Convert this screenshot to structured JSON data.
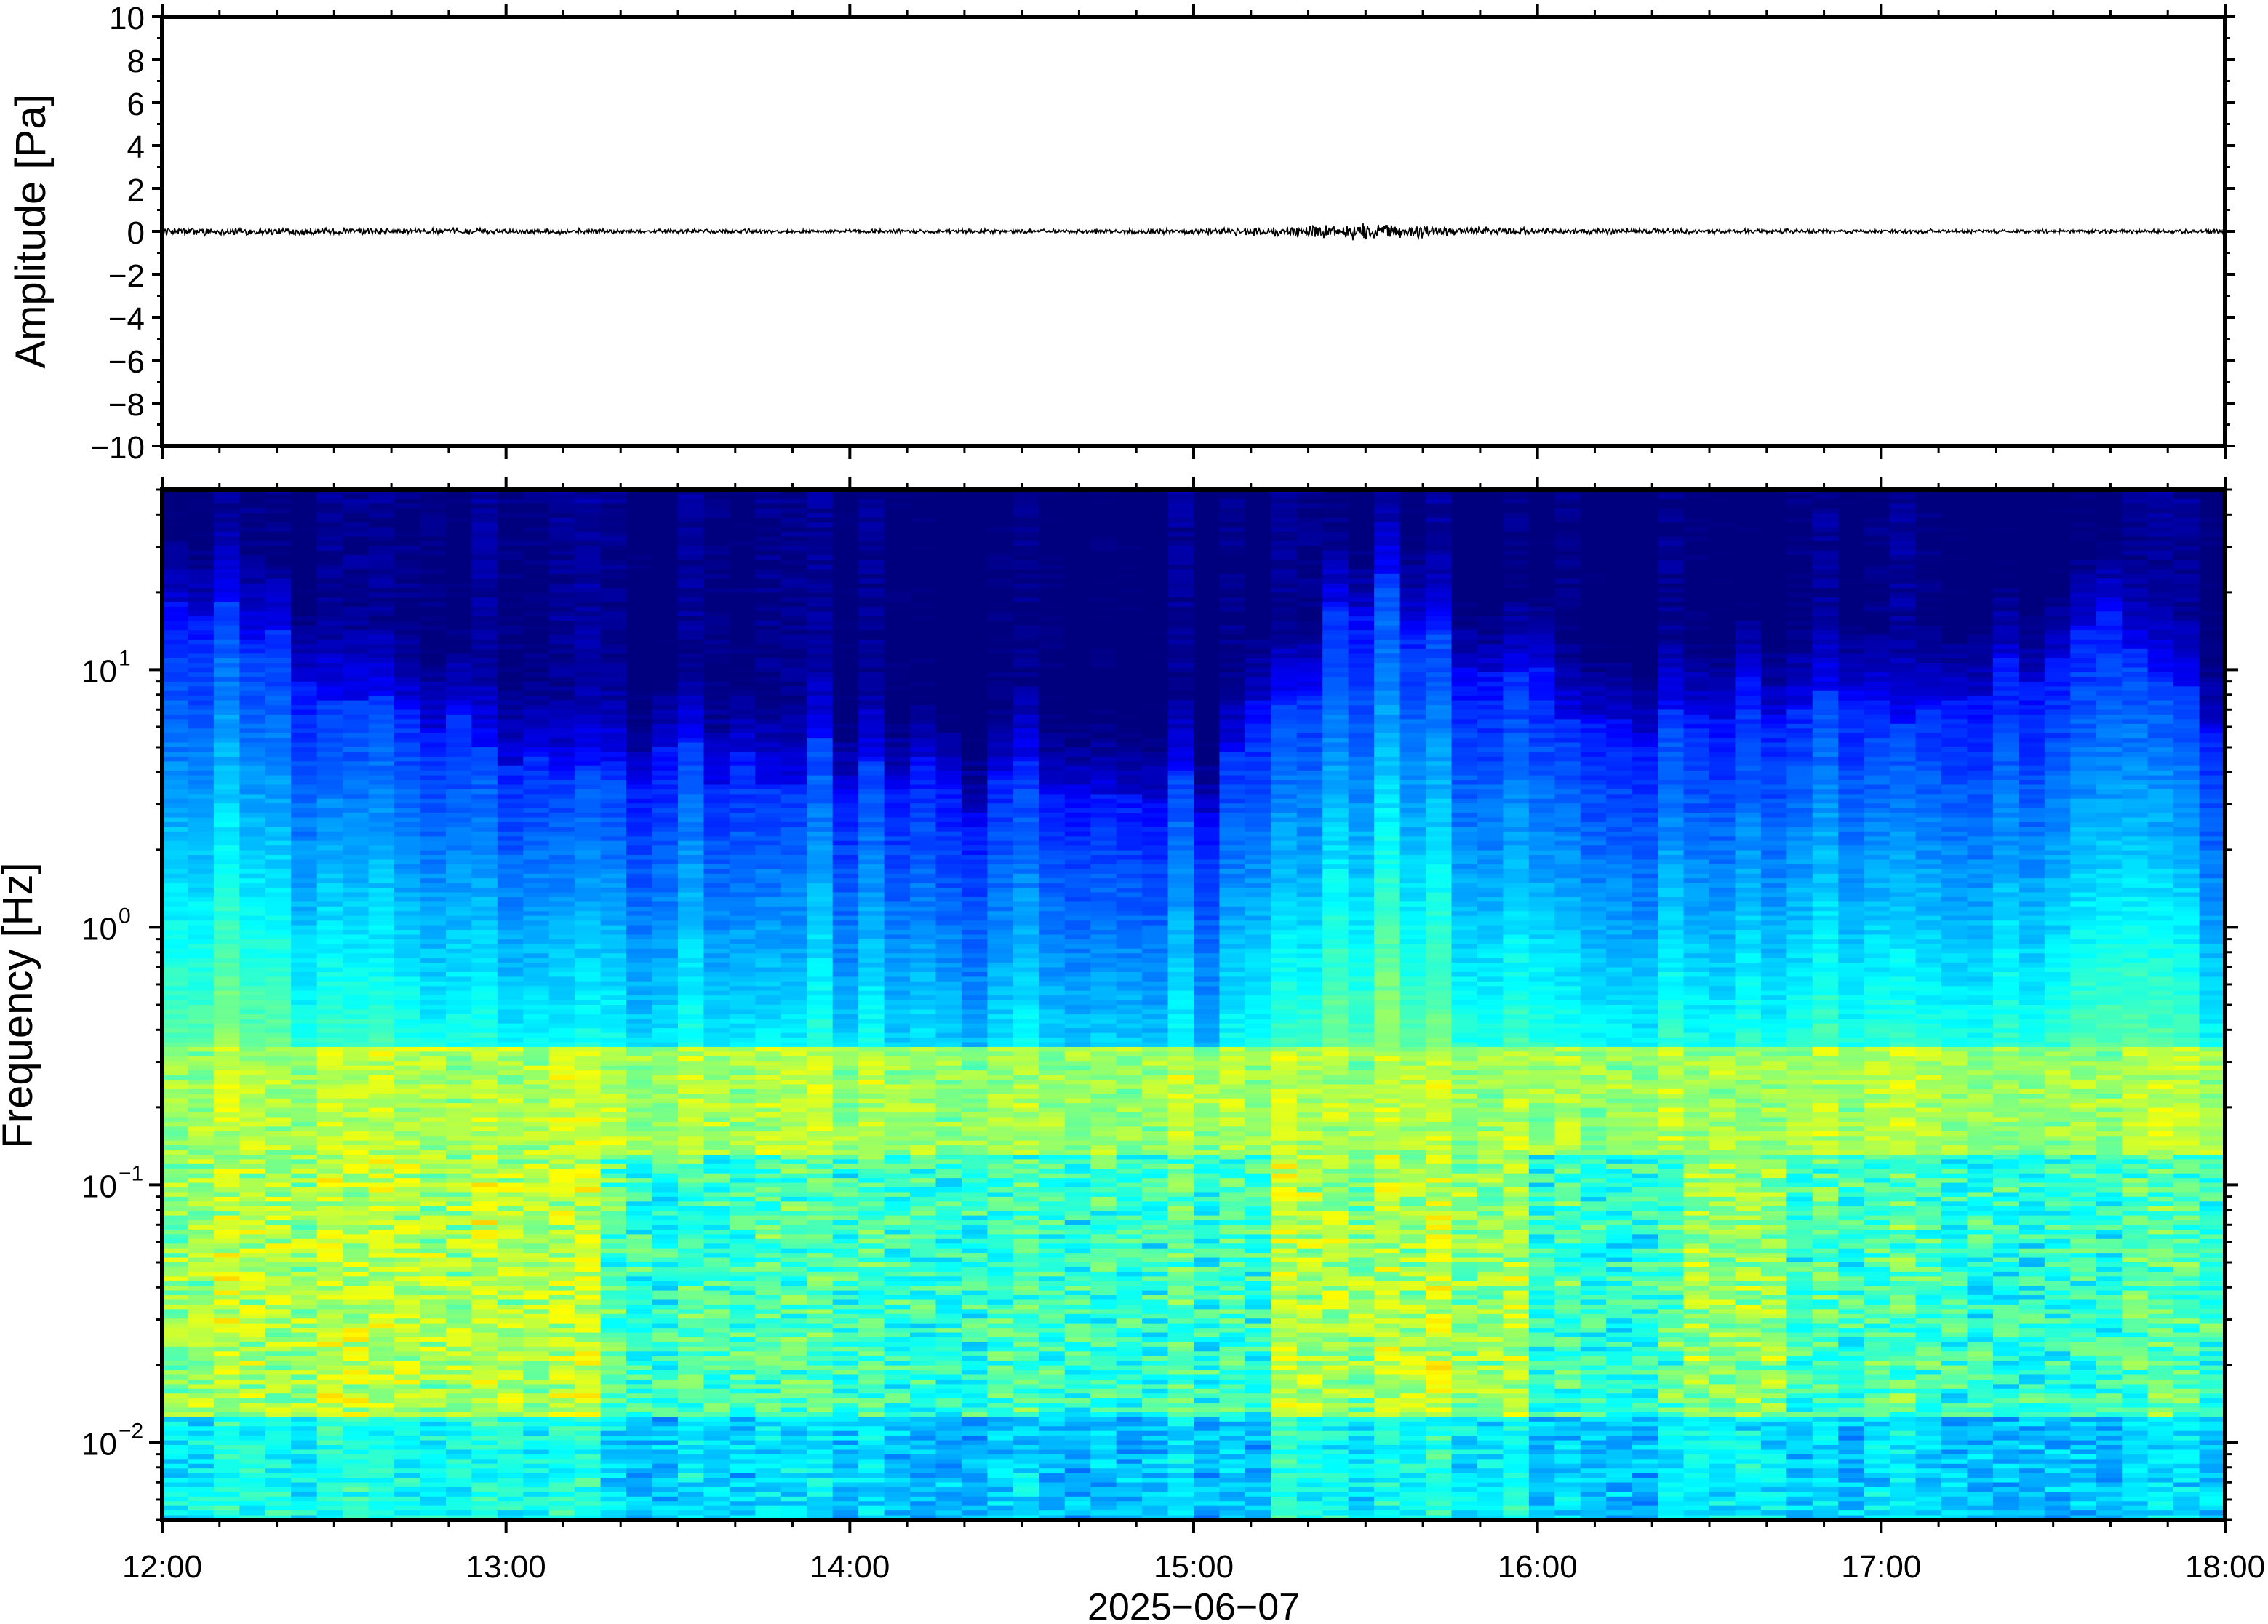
{
  "chart_data": [
    {
      "type": "line",
      "ylabel": "Amplitude [Pa]",
      "ylim": [
        -10,
        10
      ],
      "y_ticks": [
        "10",
        "8",
        "6",
        "4",
        "2",
        "0",
        "−2",
        "−4",
        "−6",
        "−8",
        "−10"
      ],
      "y_tick_values": [
        10,
        8,
        6,
        4,
        2,
        0,
        -2,
        -4,
        -6,
        -8,
        -10
      ],
      "xlim": [
        "12:00",
        "18:00"
      ],
      "series": [
        {
          "description_values_note": "waveform centered on zero; small amplitude noise",
          "x": [
            "12:00",
            "13:00",
            "14:00",
            "15:00",
            "15:30",
            "16:00",
            "17:00",
            "18:00"
          ],
          "y_envelope": [
            0.15,
            0.1,
            0.08,
            0.1,
            0.3,
            0.12,
            0.08,
            0.08
          ]
        }
      ],
      "grid": false,
      "line_color": "#000000"
    },
    {
      "type": "heatmap",
      "ylabel": "Frequency [Hz]",
      "xlabel": "2025−06−07",
      "y_scale": "log",
      "ylim": [
        0.005,
        50
      ],
      "y_ticks": [
        {
          "base": "10",
          "exp": "1",
          "value": 10
        },
        {
          "base": "10",
          "exp": "0",
          "value": 1
        },
        {
          "base": "10",
          "exp": "−1",
          "value": 0.1
        },
        {
          "base": "10",
          "exp": "−2",
          "value": 0.01
        }
      ],
      "x_ticks": [
        "12:00",
        "13:00",
        "14:00",
        "15:00",
        "16:00",
        "17:00",
        "18:00"
      ],
      "colormap": "jet",
      "colors": [
        "#00007f",
        "#0000ff",
        "#007fff",
        "#00ffff",
        "#7fff7f",
        "#ffff00",
        "#ff7f00",
        "#ff0000"
      ],
      "features": {
        "microbarom_band_hz": [
          0.15,
          0.3
        ],
        "high_freq_cutoff_hz_by_hour": {
          "12:00": 20,
          "13:00": 5,
          "14:00": 4,
          "15:00": 3,
          "15:30": 20,
          "16:00": 8,
          "17:00": 7,
          "17:40": 15,
          "18:00": 5
        }
      }
    }
  ]
}
